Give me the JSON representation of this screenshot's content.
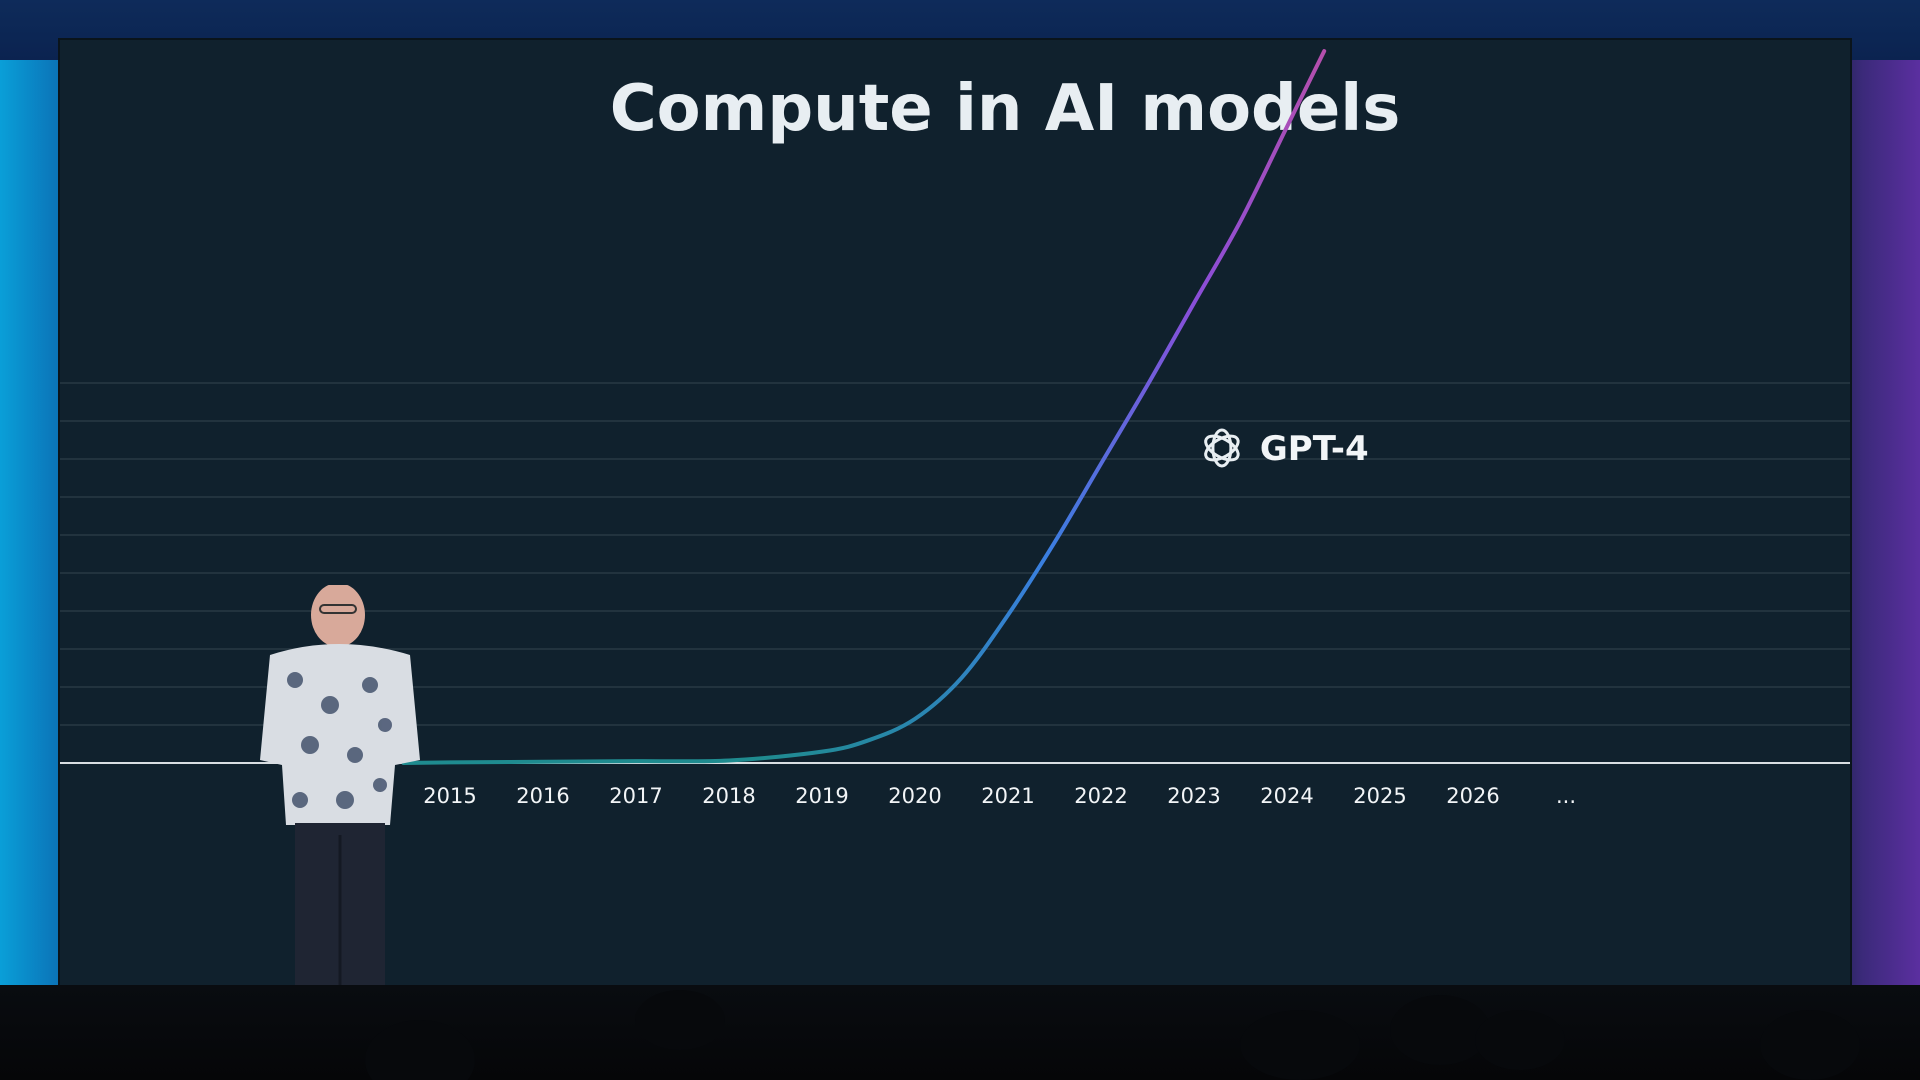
{
  "chart_data": {
    "type": "line",
    "title": "Compute in AI models",
    "x_tick_labels": [
      "2015",
      "2016",
      "2017",
      "2018",
      "2019",
      "2020",
      "2021",
      "2022",
      "2023",
      "2024",
      "2025",
      "2026",
      "..."
    ],
    "xlabel": "",
    "ylabel": "",
    "y_tick_labels": [],
    "grid": true,
    "series": [
      {
        "x": [
          2014.5,
          2015,
          2016,
          2017,
          2018,
          2019,
          2019.5,
          2020,
          2020.5,
          2021,
          2021.5,
          2022,
          2022.5,
          2023,
          2023.5,
          2024,
          2024.4
        ],
        "y": [
          0,
          0.1,
          0.2,
          0.3,
          0.4,
          1.8,
          3.6,
          7.0,
          13.5,
          23.5,
          35.0,
          47.5,
          60.0,
          73.0,
          86.0,
          101.0,
          113.0
        ]
      }
    ],
    "annotations": [
      {
        "text": "GPT-4",
        "x": 2023.3,
        "y": 50,
        "icon": "openai-logo-icon"
      }
    ],
    "colors": {
      "background": "#10212d",
      "title": "#e8eef2",
      "tick_label": "#f2f5f7",
      "gridline": "#3a4a55",
      "axis": "#d9dee2",
      "line_start": "#1f8b8f",
      "line_mid": "#3a7fe0",
      "line_violet": "#8a4ed8",
      "line_end": "#c04fa0"
    }
  }
}
